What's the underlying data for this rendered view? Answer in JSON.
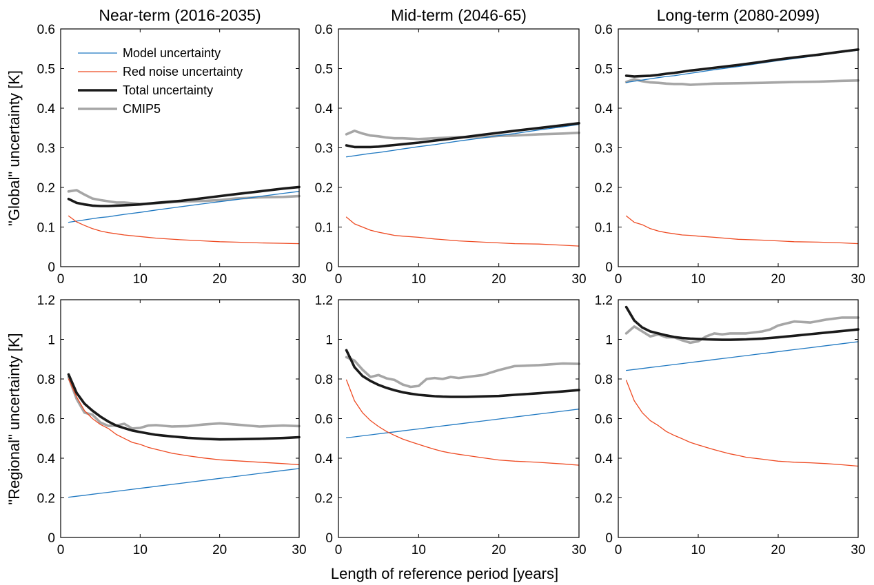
{
  "figure": {
    "xlabel": "Length of reference period  [years]",
    "row_ylabels": [
      "\"Global\" uncertainty [K]",
      "\"Regional\" uncertainty [K]"
    ],
    "legend": {
      "location": "top-left of first panel",
      "entries": [
        "Model uncertainty",
        "Red noise uncertainty",
        "Total uncertainty",
        "CMIP5"
      ]
    },
    "colors": {
      "model": "#1f78c1",
      "red_noise": "#ee4a22",
      "total": "#1a1a1a",
      "cmip5": "#a6a6a6"
    }
  },
  "chart_data": [
    {
      "type": "line",
      "title": "Near-term (2016-2035)",
      "xlabel": "",
      "ylabel": "\"Global\" uncertainty [K]",
      "xlim": [
        0,
        30
      ],
      "ylim": [
        0,
        0.6
      ],
      "xticks": [
        0,
        10,
        20,
        30
      ],
      "yticks": [
        0,
        0.1,
        0.2,
        0.3,
        0.4,
        0.5,
        0.6
      ],
      "ytick_labels": [
        "0",
        "0.1",
        "0.2",
        "0.3",
        "0.4",
        "0.5",
        "0.6"
      ],
      "x": [
        1,
        2,
        3,
        4,
        5,
        6,
        7,
        8,
        10,
        12,
        15,
        18,
        20,
        22,
        25,
        28,
        30
      ],
      "series": [
        {
          "name": "Model uncertainty",
          "values": [
            0.112,
            0.115,
            0.118,
            0.121,
            0.124,
            0.126,
            0.129,
            0.132,
            0.137,
            0.143,
            0.151,
            0.159,
            0.164,
            0.169,
            0.177,
            0.185,
            0.19
          ]
        },
        {
          "name": "Red noise uncertainty",
          "values": [
            0.128,
            0.113,
            0.104,
            0.096,
            0.09,
            0.086,
            0.083,
            0.08,
            0.076,
            0.072,
            0.068,
            0.065,
            0.063,
            0.062,
            0.06,
            0.059,
            0.058
          ]
        },
        {
          "name": "Total uncertainty",
          "values": [
            0.171,
            0.161,
            0.157,
            0.154,
            0.153,
            0.153,
            0.154,
            0.155,
            0.157,
            0.161,
            0.166,
            0.173,
            0.178,
            0.183,
            0.19,
            0.197,
            0.201
          ]
        },
        {
          "name": "CMIP5",
          "values": [
            0.19,
            0.193,
            0.182,
            0.172,
            0.168,
            0.165,
            0.162,
            0.162,
            0.158,
            0.16,
            0.164,
            0.166,
            0.168,
            0.172,
            0.175,
            0.176,
            0.178
          ]
        }
      ]
    },
    {
      "type": "line",
      "title": "Mid-term (2046-65)",
      "xlabel": "",
      "ylabel": "",
      "xlim": [
        0,
        30
      ],
      "ylim": [
        0,
        0.6
      ],
      "xticks": [
        0,
        10,
        20,
        30
      ],
      "yticks": [
        0,
        0.1,
        0.2,
        0.3,
        0.4,
        0.5,
        0.6
      ],
      "ytick_labels": [
        "0",
        "0.1",
        "0.2",
        "0.3",
        "0.4",
        "0.5",
        "0.6"
      ],
      "x": [
        1,
        2,
        3,
        4,
        5,
        6,
        7,
        8,
        10,
        12,
        15,
        18,
        20,
        22,
        25,
        28,
        30
      ],
      "series": [
        {
          "name": "Model uncertainty",
          "values": [
            0.277,
            0.28,
            0.283,
            0.286,
            0.288,
            0.291,
            0.294,
            0.297,
            0.303,
            0.308,
            0.317,
            0.325,
            0.331,
            0.336,
            0.345,
            0.353,
            0.359
          ]
        },
        {
          "name": "Red noise uncertainty",
          "values": [
            0.125,
            0.108,
            0.1,
            0.092,
            0.087,
            0.083,
            0.079,
            0.077,
            0.074,
            0.07,
            0.065,
            0.062,
            0.06,
            0.058,
            0.057,
            0.054,
            0.052
          ]
        },
        {
          "name": "Total uncertainty",
          "values": [
            0.306,
            0.302,
            0.302,
            0.302,
            0.303,
            0.305,
            0.307,
            0.309,
            0.313,
            0.318,
            0.325,
            0.333,
            0.338,
            0.343,
            0.35,
            0.357,
            0.362
          ]
        },
        {
          "name": "CMIP5",
          "values": [
            0.334,
            0.343,
            0.336,
            0.331,
            0.329,
            0.326,
            0.324,
            0.324,
            0.322,
            0.324,
            0.327,
            0.327,
            0.33,
            0.331,
            0.334,
            0.336,
            0.338
          ]
        }
      ]
    },
    {
      "type": "line",
      "title": "Long-term (2080-2099)",
      "xlabel": "",
      "ylabel": "",
      "xlim": [
        0,
        30
      ],
      "ylim": [
        0,
        0.6
      ],
      "xticks": [
        0,
        10,
        20,
        30
      ],
      "yticks": [
        0,
        0.1,
        0.2,
        0.3,
        0.4,
        0.5,
        0.6
      ],
      "ytick_labels": [
        "0",
        "0.1",
        "0.2",
        "0.3",
        "0.4",
        "0.5",
        "0.6"
      ],
      "x": [
        1,
        2,
        3,
        4,
        5,
        6,
        7,
        8,
        9,
        10,
        12,
        15,
        18,
        20,
        22,
        25,
        28,
        30
      ],
      "series": [
        {
          "name": "Model uncertainty",
          "values": [
            0.465,
            0.468,
            0.471,
            0.474,
            0.477,
            0.48,
            0.482,
            0.485,
            0.488,
            0.491,
            0.497,
            0.505,
            0.514,
            0.52,
            0.525,
            0.533,
            0.541,
            0.546
          ]
        },
        {
          "name": "Red noise uncertainty",
          "values": [
            0.128,
            0.112,
            0.106,
            0.096,
            0.09,
            0.086,
            0.083,
            0.08,
            0.079,
            0.077,
            0.074,
            0.069,
            0.067,
            0.065,
            0.063,
            0.062,
            0.06,
            0.058
          ]
        },
        {
          "name": "Total uncertainty",
          "values": [
            0.482,
            0.48,
            0.481,
            0.482,
            0.484,
            0.487,
            0.489,
            0.492,
            0.495,
            0.497,
            0.502,
            0.509,
            0.517,
            0.523,
            0.528,
            0.535,
            0.543,
            0.548
          ]
        },
        {
          "name": "CMIP5",
          "values": [
            0.466,
            0.473,
            0.468,
            0.465,
            0.464,
            0.462,
            0.461,
            0.461,
            0.459,
            0.46,
            0.462,
            0.463,
            0.464,
            0.465,
            0.466,
            0.467,
            0.469,
            0.47
          ]
        }
      ]
    },
    {
      "type": "line",
      "title": "",
      "xlabel": "",
      "ylabel": "\"Regional\" uncertainty [K]",
      "xlim": [
        0,
        30
      ],
      "ylim": [
        0,
        1.2
      ],
      "xticks": [
        0,
        10,
        20,
        30
      ],
      "yticks": [
        0,
        0.2,
        0.4,
        0.6,
        0.8,
        1.0,
        1.2
      ],
      "ytick_labels": [
        "0",
        "0.2",
        "0.4",
        "0.6",
        "0.8",
        "1",
        "1.2"
      ],
      "x": [
        1,
        2,
        3,
        4,
        5,
        6,
        7,
        8,
        9,
        10,
        11,
        12,
        14,
        16,
        18,
        20,
        22,
        25,
        28,
        30
      ],
      "series": [
        {
          "name": "Model uncertainty",
          "values": [
            0.203,
            0.208,
            0.213,
            0.218,
            0.223,
            0.228,
            0.233,
            0.238,
            0.243,
            0.248,
            0.253,
            0.258,
            0.268,
            0.278,
            0.288,
            0.298,
            0.308,
            0.323,
            0.338,
            0.348
          ]
        },
        {
          "name": "Red noise uncertainty",
          "values": [
            0.8,
            0.71,
            0.64,
            0.6,
            0.57,
            0.55,
            0.52,
            0.5,
            0.48,
            0.47,
            0.455,
            0.445,
            0.425,
            0.412,
            0.401,
            0.392,
            0.387,
            0.38,
            0.373,
            0.367
          ]
        },
        {
          "name": "Total uncertainty",
          "values": [
            0.823,
            0.73,
            0.675,
            0.64,
            0.61,
            0.585,
            0.565,
            0.552,
            0.54,
            0.532,
            0.525,
            0.518,
            0.51,
            0.503,
            0.498,
            0.495,
            0.496,
            0.498,
            0.502,
            0.506
          ]
        },
        {
          "name": "CMIP5",
          "values": [
            0.81,
            0.7,
            0.63,
            0.62,
            0.58,
            0.563,
            0.565,
            0.574,
            0.55,
            0.553,
            0.565,
            0.567,
            0.56,
            0.562,
            0.57,
            0.576,
            0.57,
            0.56,
            0.565,
            0.562
          ]
        }
      ]
    },
    {
      "type": "line",
      "title": "",
      "xlabel": "",
      "ylabel": "",
      "xlim": [
        0,
        30
      ],
      "ylim": [
        0,
        1.2
      ],
      "xticks": [
        0,
        10,
        20,
        30
      ],
      "yticks": [
        0,
        0.2,
        0.4,
        0.6,
        0.8,
        1.0,
        1.2
      ],
      "ytick_labels": [
        "0",
        "0.2",
        "0.4",
        "0.6",
        "0.8",
        "1",
        "1.2"
      ],
      "x": [
        1,
        2,
        3,
        4,
        5,
        6,
        7,
        8,
        9,
        10,
        11,
        12,
        13,
        14,
        15,
        16,
        18,
        20,
        22,
        25,
        28,
        30
      ],
      "series": [
        {
          "name": "Model uncertainty",
          "values": [
            0.503,
            0.508,
            0.513,
            0.518,
            0.523,
            0.528,
            0.533,
            0.538,
            0.543,
            0.548,
            0.553,
            0.558,
            0.563,
            0.568,
            0.573,
            0.578,
            0.588,
            0.598,
            0.608,
            0.623,
            0.638,
            0.648
          ]
        },
        {
          "name": "Red noise uncertainty",
          "values": [
            0.795,
            0.69,
            0.63,
            0.59,
            0.56,
            0.535,
            0.515,
            0.497,
            0.483,
            0.47,
            0.457,
            0.445,
            0.434,
            0.426,
            0.42,
            0.414,
            0.402,
            0.391,
            0.385,
            0.379,
            0.371,
            0.365
          ]
        },
        {
          "name": "Total uncertainty",
          "values": [
            0.945,
            0.86,
            0.815,
            0.79,
            0.77,
            0.755,
            0.743,
            0.733,
            0.726,
            0.72,
            0.716,
            0.713,
            0.711,
            0.71,
            0.71,
            0.71,
            0.712,
            0.714,
            0.72,
            0.728,
            0.737,
            0.744
          ]
        },
        {
          "name": "CMIP5",
          "values": [
            0.91,
            0.893,
            0.847,
            0.81,
            0.82,
            0.803,
            0.795,
            0.772,
            0.76,
            0.765,
            0.8,
            0.805,
            0.8,
            0.81,
            0.805,
            0.81,
            0.82,
            0.845,
            0.865,
            0.87,
            0.878,
            0.876
          ]
        }
      ]
    },
    {
      "type": "line",
      "title": "",
      "xlabel": "",
      "ylabel": "",
      "xlim": [
        0,
        30
      ],
      "ylim": [
        0,
        1.2
      ],
      "xticks": [
        0,
        10,
        20,
        30
      ],
      "yticks": [
        0,
        0.2,
        0.4,
        0.6,
        0.8,
        1.0,
        1.2
      ],
      "ytick_labels": [
        "0",
        "0.2",
        "0.4",
        "0.6",
        "0.8",
        "1",
        "1.2"
      ],
      "x": [
        1,
        2,
        3,
        4,
        5,
        6,
        7,
        8,
        9,
        10,
        11,
        12,
        13,
        14,
        15,
        16,
        17,
        18,
        19,
        20,
        22,
        24,
        26,
        28,
        30
      ],
      "series": [
        {
          "name": "Model uncertainty",
          "values": [
            0.843,
            0.848,
            0.853,
            0.858,
            0.863,
            0.868,
            0.873,
            0.878,
            0.883,
            0.888,
            0.893,
            0.898,
            0.903,
            0.908,
            0.913,
            0.918,
            0.923,
            0.928,
            0.933,
            0.938,
            0.948,
            0.958,
            0.968,
            0.978,
            0.988
          ]
        },
        {
          "name": "Red noise uncertainty",
          "values": [
            0.793,
            0.69,
            0.63,
            0.59,
            0.565,
            0.535,
            0.515,
            0.498,
            0.48,
            0.467,
            0.455,
            0.443,
            0.432,
            0.422,
            0.414,
            0.405,
            0.4,
            0.395,
            0.39,
            0.385,
            0.38,
            0.377,
            0.373,
            0.367,
            0.36
          ]
        },
        {
          "name": "Total uncertainty",
          "values": [
            1.163,
            1.095,
            1.06,
            1.04,
            1.03,
            1.02,
            1.012,
            1.007,
            1.004,
            1.002,
            1.0,
            0.999,
            0.998,
            0.998,
            0.999,
            1.0,
            1.002,
            1.004,
            1.007,
            1.01,
            1.018,
            1.026,
            1.034,
            1.042,
            1.05
          ]
        },
        {
          "name": "CMIP5",
          "values": [
            1.03,
            1.065,
            1.04,
            1.015,
            1.025,
            1.01,
            1.01,
            0.995,
            0.983,
            0.99,
            1.015,
            1.03,
            1.025,
            1.03,
            1.03,
            1.03,
            1.035,
            1.04,
            1.05,
            1.07,
            1.09,
            1.085,
            1.1,
            1.11,
            1.11
          ]
        }
      ]
    }
  ]
}
